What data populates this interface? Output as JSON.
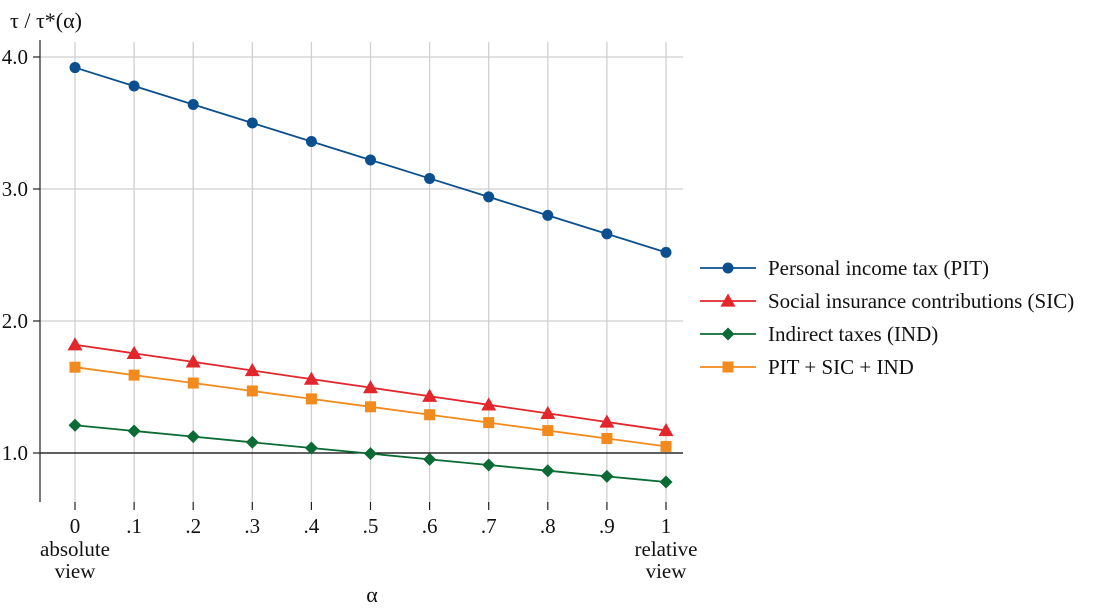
{
  "chart_data": {
    "type": "line",
    "title": "",
    "ylabel": "τ / τ*(α)",
    "xlabel": "α",
    "x": [
      0,
      0.1,
      0.2,
      0.3,
      0.4,
      0.5,
      0.6,
      0.7,
      0.8,
      0.9,
      1
    ],
    "x_tick_labels": [
      "0",
      ".1",
      ".2",
      ".3",
      ".4",
      ".5",
      ".6",
      ".7",
      ".8",
      ".9",
      "1"
    ],
    "x_end_labels": {
      "left": [
        "absolute",
        "view"
      ],
      "right": [
        "relative",
        "view"
      ]
    },
    "xlim": [
      0,
      1
    ],
    "ylim": [
      0.55,
      4.1
    ],
    "y_ticks": [
      1.0,
      2.0,
      3.0,
      4.0
    ],
    "y_tick_labels": [
      "1.0",
      "2.0",
      "3.0",
      "4.0"
    ],
    "reference_line": 1.0,
    "grid": true,
    "legend_position": "right",
    "series": [
      {
        "name": "Personal income tax (PIT)",
        "color": "#0b4f8f",
        "marker": "circle",
        "values": [
          3.92,
          3.78,
          3.64,
          3.5,
          3.36,
          3.22,
          3.08,
          2.94,
          2.8,
          2.66,
          2.52
        ]
      },
      {
        "name": "Social insurance contributions (SIC)",
        "color": "#e3262b",
        "marker": "triangle",
        "values": [
          1.82,
          1.755,
          1.69,
          1.625,
          1.56,
          1.495,
          1.43,
          1.365,
          1.3,
          1.235,
          1.17
        ]
      },
      {
        "name": "Indirect taxes (IND)",
        "color": "#0a6b35",
        "marker": "diamond",
        "values": [
          1.21,
          1.167,
          1.124,
          1.081,
          1.038,
          0.995,
          0.952,
          0.909,
          0.866,
          0.823,
          0.78
        ]
      },
      {
        "name": "PIT + SIC + IND",
        "color": "#f28a1e",
        "marker": "square",
        "values": [
          1.65,
          1.59,
          1.53,
          1.47,
          1.41,
          1.35,
          1.29,
          1.23,
          1.17,
          1.11,
          1.05
        ]
      }
    ]
  }
}
